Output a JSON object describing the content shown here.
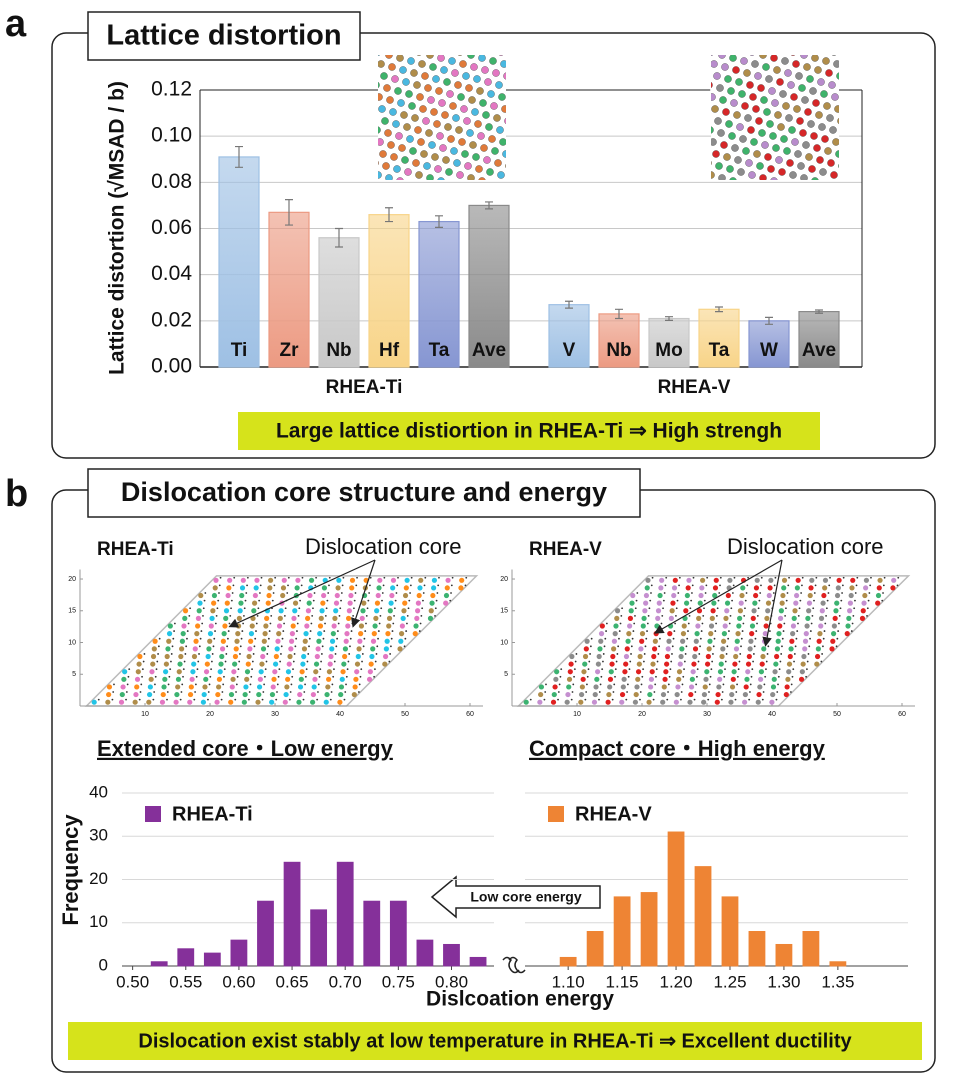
{
  "figure": {
    "panel_a": {
      "label": "a",
      "title": "Lattice distortion",
      "banner": "Large lattice distiortion in RHEA-Ti ⇒ High strengh"
    },
    "panel_b": {
      "label": "b",
      "title": "Dislocation core structure and energy",
      "core_maps": [
        {
          "name": "RHEA-Ti",
          "annotation": "Dislocation core",
          "caption": "Extended core・Low energy",
          "xlim": [
            0,
            62
          ],
          "ylim": [
            0,
            21.5
          ],
          "xticks": [
            10,
            20,
            30,
            40,
            50,
            60
          ],
          "yticks": [
            5,
            10,
            15,
            20
          ]
        },
        {
          "name": "RHEA-V",
          "annotation": "Dislocation core",
          "caption": "Compact core・High energy",
          "xlim": [
            0,
            62
          ],
          "ylim": [
            0,
            21.5
          ],
          "xticks": [
            10,
            20,
            30,
            40,
            50,
            60
          ],
          "yticks": [
            5,
            10,
            15,
            20
          ]
        }
      ],
      "arrow_label": "Low core energy",
      "x_label": "Dislcoation energy",
      "banner": "Dislocation exist stably at low temperature in RHEA-Ti ⇒ Excellent ductility"
    }
  },
  "chart_data": [
    {
      "type": "bar",
      "y_label": "Lattice distortion (√MSAD / b)",
      "ylim": [
        0,
        0.12
      ],
      "yticks": [
        {
          "value": 0,
          "label": "0.00"
        },
        0.02,
        0.04,
        0.06,
        0.08,
        {
          "value": 0.1,
          "label": "0.10"
        },
        0.12
      ],
      "grid": true,
      "groups": [
        {
          "name": "RHEA-Ti",
          "categories": [
            "Ti",
            "Zr",
            "Nb",
            "Hf",
            "Ta",
            "Ave"
          ],
          "values": [
            0.091,
            0.067,
            0.056,
            0.066,
            0.063,
            0.07
          ],
          "errors": [
            0.0045,
            0.0055,
            0.004,
            0.003,
            0.0025,
            0.0015
          ],
          "colors": [
            "#9ec0e4",
            "#ec9a82",
            "#c8c8c8",
            "#f8d488",
            "#8696d2",
            "#8a8a8a"
          ]
        },
        {
          "name": "RHEA-V",
          "categories": [
            "V",
            "Nb",
            "Mo",
            "Ta",
            "W",
            "Ave"
          ],
          "values": [
            0.027,
            0.023,
            0.021,
            0.025,
            0.02,
            0.024
          ],
          "errors": [
            0.0015,
            0.002,
            0.0008,
            0.001,
            0.0015,
            0.0007
          ],
          "colors": [
            "#9ec0e4",
            "#ec9a82",
            "#c8c8c8",
            "#f8d488",
            "#8696d2",
            "#8a8a8a"
          ]
        }
      ]
    },
    {
      "type": "bar",
      "y_label": "Frequency",
      "xlim": [
        0.49,
        0.84
      ],
      "ylim": [
        0,
        40
      ],
      "xticks": [
        {
          "value": 0.5,
          "label": "0.50"
        },
        0.55,
        {
          "value": 0.6,
          "label": "0.60"
        },
        0.65,
        {
          "value": 0.7,
          "label": "0.70"
        },
        0.75,
        {
          "value": 0.8,
          "label": "0.80"
        }
      ],
      "yticks": [
        0,
        10,
        20,
        30,
        40
      ],
      "ytick_labels": true,
      "grid": true,
      "x": [
        0.525,
        0.55,
        0.575,
        0.6,
        0.625,
        0.65,
        0.675,
        0.7,
        0.725,
        0.75,
        0.775,
        0.8,
        0.825
      ],
      "series": [
        {
          "name": "RHEA-Ti",
          "color": "#85309a",
          "values": [
            1,
            4,
            3,
            6,
            15,
            24,
            13,
            24,
            15,
            15,
            6,
            5,
            2
          ]
        }
      ]
    },
    {
      "type": "bar",
      "xlim": [
        1.06,
        1.415
      ],
      "ylim": [
        0,
        40
      ],
      "xticks": [
        {
          "value": 1.1,
          "label": "1.10"
        },
        1.15,
        {
          "value": 1.2,
          "label": "1.20"
        },
        1.25,
        {
          "value": 1.3,
          "label": "1.30"
        },
        1.35
      ],
      "yticks": [
        0,
        10,
        20,
        30,
        40
      ],
      "ytick_labels": false,
      "grid": true,
      "x": [
        1.1,
        1.125,
        1.15,
        1.175,
        1.2,
        1.225,
        1.25,
        1.275,
        1.3,
        1.325,
        1.35
      ],
      "series": [
        {
          "name": "RHEA-V",
          "color": "#ee8434",
          "values": [
            2,
            8,
            16,
            17,
            31,
            23,
            16,
            8,
            5,
            8,
            1
          ]
        }
      ]
    }
  ]
}
